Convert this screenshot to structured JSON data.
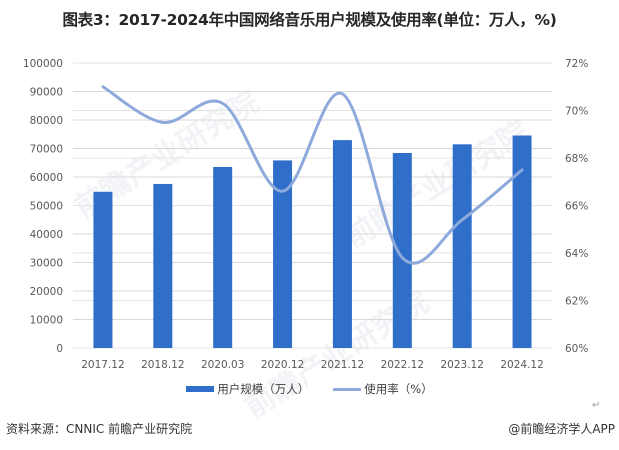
{
  "title": "图表3：2017-2024年中国网络音乐用户规模及使用率(单位：万人，%)",
  "chart_data": {
    "type": "bar+line",
    "title": "图表3：2017-2024年中国网络音乐用户规模及使用率(单位：万人，%)",
    "categories": [
      "2017.12",
      "2018.12",
      "2020.03",
      "2020.12",
      "2021.12",
      "2022.12",
      "2023.12",
      "2024.12"
    ],
    "series": [
      {
        "name": "用户规模（万人）",
        "type": "bar",
        "axis": "left",
        "color": "#2F6FCA",
        "values": [
          54809,
          57560,
          63513,
          65825,
          72946,
          68420,
          71464,
          74556
        ]
      },
      {
        "name": "使用率（%）",
        "type": "line",
        "smooth": true,
        "axis": "right",
        "color": "#8EA9DB",
        "values": [
          71.0,
          69.5,
          70.3,
          66.6,
          70.7,
          63.8,
          65.4,
          67.5
        ]
      }
    ],
    "y_left": {
      "ylim": [
        0,
        100000
      ],
      "ticks": [
        "0",
        "10000",
        "20000",
        "30000",
        "40000",
        "50000",
        "60000",
        "70000",
        "80000",
        "90000",
        "100000"
      ]
    },
    "y_right": {
      "ylim": [
        60,
        72
      ],
      "ticks": [
        "60%",
        "62%",
        "64%",
        "66%",
        "68%",
        "70%",
        "72%"
      ]
    },
    "grid": true,
    "legend_position": "bottom"
  },
  "legend": {
    "bar_label": "用户规模（万人）",
    "line_label": "使用率（%）"
  },
  "footer": {
    "source": "资料来源：CNNIC 前瞻产业研究院",
    "credit": "@前瞻经济学人APP"
  },
  "watermark": "前瞻产业研究院",
  "return_mark": "↵"
}
